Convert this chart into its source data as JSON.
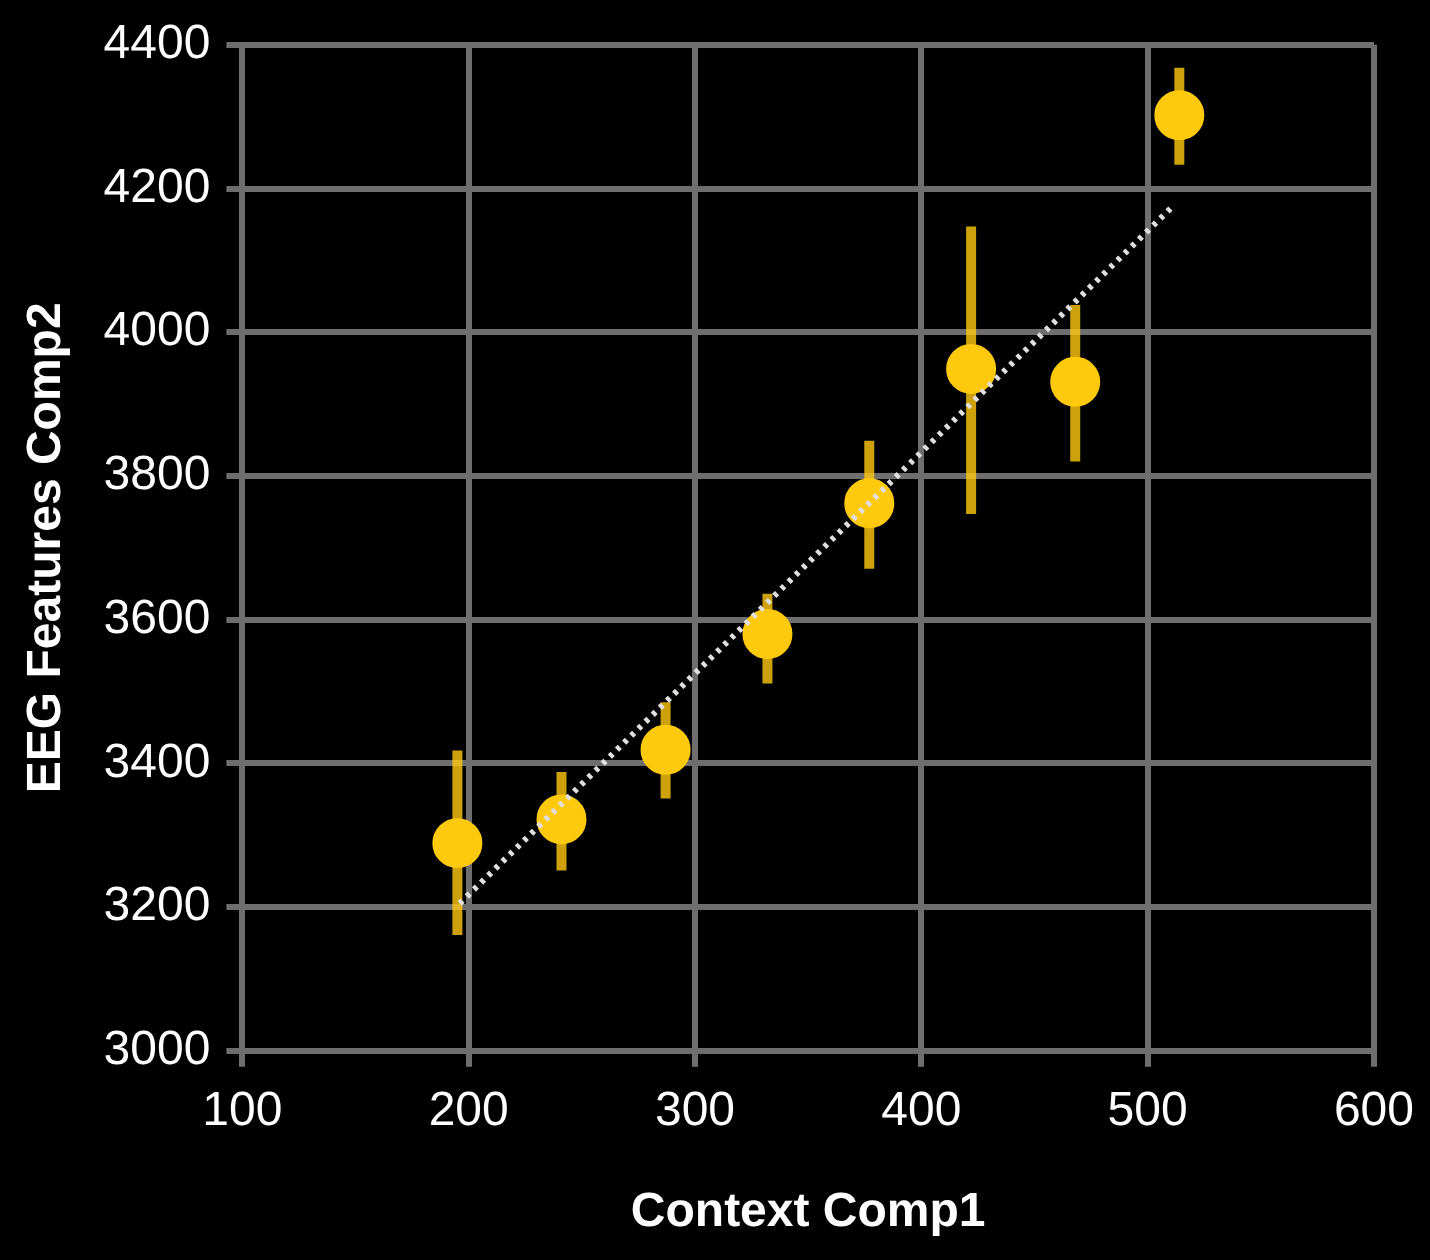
{
  "chart_data": {
    "type": "scatter",
    "xlabel": "Context Comp1",
    "ylabel": "EEG Features Comp2",
    "xlim": [
      100,
      600
    ],
    "xticks": [
      100,
      200,
      300,
      400,
      500,
      600
    ],
    "ylim": [
      3000,
      4400
    ],
    "yticks": [
      3000,
      3200,
      3400,
      3600,
      3800,
      4000,
      4200,
      4400
    ],
    "grid": true,
    "legend": false,
    "marker": "circle",
    "series": [
      {
        "color": "#ffc90e",
        "x": [
          195,
          241,
          287,
          332,
          377,
          422,
          468,
          514
        ],
        "values": [
          3289,
          3322,
          3419,
          3580,
          3762,
          3949,
          3931,
          4302
        ],
        "errors": [
          [
            3161,
            3418
          ],
          [
            3251,
            3388
          ],
          [
            3351,
            3485
          ],
          [
            3511,
            3636
          ],
          [
            3671,
            3849
          ],
          [
            3747,
            4147
          ],
          [
            3820,
            4038
          ],
          [
            4233,
            4368
          ]
        ]
      },
      {
        "type": "line",
        "color": "#e0e0e0",
        "line_style": "dotted",
        "marker": "none",
        "x": [
          196,
          512
        ],
        "values": [
          3205,
          4178
        ]
      }
    ]
  }
}
